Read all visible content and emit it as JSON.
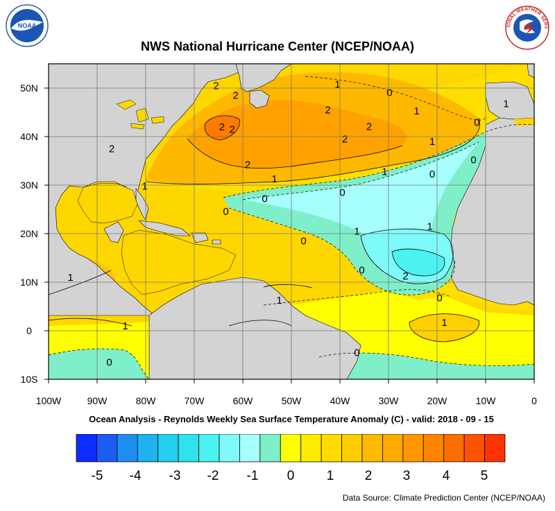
{
  "title": "NWS National Hurricane Center (NCEP/NOAA)",
  "subtitle": "Ocean Analysis - Reynolds Weekly Sea Surface Temperature Anomaly (C) - valid: 2018 - 09 - 15",
  "source": "Data Source: Climate Prediction Center (NCEP/NOAA)",
  "logos": {
    "left": {
      "name": "noaa-logo",
      "text": "NOAA"
    },
    "right": {
      "name": "nws-logo",
      "text": "NATIONAL WEATHER SERVICE"
    }
  },
  "map": {
    "lon_labels": [
      "100W",
      "90W",
      "80W",
      "70W",
      "60W",
      "50W",
      "40W",
      "30W",
      "20W",
      "10W",
      "0"
    ],
    "lat_labels": [
      "50N",
      "40N",
      "30N",
      "20N",
      "10N",
      "0",
      "10S"
    ],
    "contour_labels": [
      {
        "text": "2",
        "lon": -65.5,
        "lat": 50.5
      },
      {
        "text": "2",
        "lon": -61.5,
        "lat": 48.5
      },
      {
        "text": "1",
        "lon": -40.5,
        "lat": 50.8
      },
      {
        "text": "0",
        "lon": -29.8,
        "lat": 49.1
      },
      {
        "text": "2",
        "lon": -42.5,
        "lat": 45.5
      },
      {
        "text": "1",
        "lon": -24.2,
        "lat": 45.3
      },
      {
        "text": "1",
        "lon": -5.8,
        "lat": 46.8
      },
      {
        "text": "2",
        "lon": -64.3,
        "lat": 42.0
      },
      {
        "text": "2",
        "lon": -62.2,
        "lat": 41.5
      },
      {
        "text": "2",
        "lon": -34.0,
        "lat": 42.1
      },
      {
        "text": "0",
        "lon": -11.8,
        "lat": 42.9
      },
      {
        "text": "2",
        "lon": -87.0,
        "lat": 37.5
      },
      {
        "text": "2",
        "lon": -39.0,
        "lat": 39.5
      },
      {
        "text": "1",
        "lon": -21.0,
        "lat": 39.0
      },
      {
        "text": "0",
        "lon": -12.5,
        "lat": 35.2
      },
      {
        "text": "2",
        "lon": -59.0,
        "lat": 34.2
      },
      {
        "text": "1",
        "lon": -53.5,
        "lat": 31.3
      },
      {
        "text": "1",
        "lon": -30.8,
        "lat": 32.8
      },
      {
        "text": "0",
        "lon": -21.0,
        "lat": 32.3
      },
      {
        "text": "1",
        "lon": -80.2,
        "lat": 29.8
      },
      {
        "text": "0",
        "lon": -39.5,
        "lat": 28.5
      },
      {
        "text": "0",
        "lon": -55.5,
        "lat": 27.2
      },
      {
        "text": "0",
        "lon": -63.5,
        "lat": 24.6
      },
      {
        "text": "1",
        "lon": -36.5,
        "lat": 20.5
      },
      {
        "text": "1",
        "lon": -21.5,
        "lat": 21.5
      },
      {
        "text": "0",
        "lon": -47.5,
        "lat": 18.5
      },
      {
        "text": "1",
        "lon": -95.5,
        "lat": 11.0
      },
      {
        "text": "0",
        "lon": -35.5,
        "lat": 12.5
      },
      {
        "text": "2",
        "lon": -26.5,
        "lat": 11.3
      },
      {
        "text": "1",
        "lon": -52.5,
        "lat": 6.3
      },
      {
        "text": "0",
        "lon": -19.5,
        "lat": 6.8
      },
      {
        "text": "1",
        "lon": -18.5,
        "lat": 1.7
      },
      {
        "text": "1",
        "lon": -84.2,
        "lat": 1.0
      },
      {
        "text": "0",
        "lon": -36.5,
        "lat": -4.5
      },
      {
        "text": "0",
        "lon": -87.5,
        "lat": -6.5
      }
    ]
  },
  "colorbar": {
    "labels": [
      "-5",
      "-4",
      "-3",
      "-2",
      "-1",
      "0",
      "1",
      "2",
      "3",
      "4",
      "5"
    ],
    "colors": [
      "#0d2cff",
      "#1b5cf2",
      "#1e8ef0",
      "#1fb2ee",
      "#23d1ee",
      "#2ee3ee",
      "#4af2f2",
      "#7ffafa",
      "#a6fffc",
      "#7fefc9",
      "#ffff00",
      "#ffec00",
      "#ffdc00",
      "#ffcc00",
      "#ffbb00",
      "#ffaa00",
      "#ff9800",
      "#ff8400",
      "#ff6e00",
      "#ff5200",
      "#ff3400"
    ]
  },
  "legend_meaning": {
    "land": "#d3d3d3"
  }
}
